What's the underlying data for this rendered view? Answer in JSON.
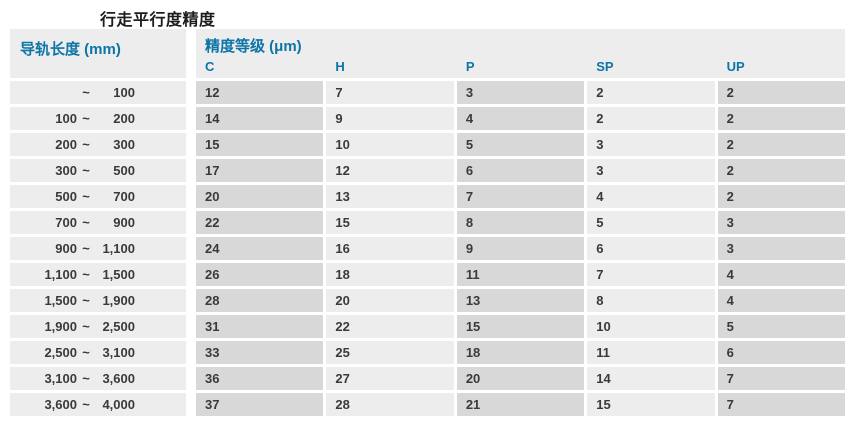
{
  "title": "行走平行度精度",
  "colors": {
    "accent_blue": "#0d74a8",
    "cell_dark": "#d8d8d8",
    "cell_light": "#ededed",
    "text_dark": "#3a3a3a"
  },
  "table": {
    "col1_header": "导轨长度 (mm)",
    "group_header": "精度等级 (μm)",
    "tilde_separator": "~",
    "grades": [
      "C",
      "H",
      "P",
      "SP",
      "UP"
    ],
    "rows": [
      {
        "lo": "",
        "hi": "100",
        "values": [
          12,
          7,
          3,
          2,
          2
        ]
      },
      {
        "lo": "100",
        "hi": "200",
        "values": [
          14,
          9,
          4,
          2,
          2
        ]
      },
      {
        "lo": "200",
        "hi": "300",
        "values": [
          15,
          10,
          5,
          3,
          2
        ]
      },
      {
        "lo": "300",
        "hi": "500",
        "values": [
          17,
          12,
          6,
          3,
          2
        ]
      },
      {
        "lo": "500",
        "hi": "700",
        "values": [
          20,
          13,
          7,
          4,
          2
        ]
      },
      {
        "lo": "700",
        "hi": "900",
        "values": [
          22,
          15,
          8,
          5,
          3
        ]
      },
      {
        "lo": "900",
        "hi": "1,100",
        "values": [
          24,
          16,
          9,
          6,
          3
        ]
      },
      {
        "lo": "1,100",
        "hi": "1,500",
        "values": [
          26,
          18,
          11,
          7,
          4
        ]
      },
      {
        "lo": "1,500",
        "hi": "1,900",
        "values": [
          28,
          20,
          13,
          8,
          4
        ]
      },
      {
        "lo": "1,900",
        "hi": "2,500",
        "values": [
          31,
          22,
          15,
          10,
          5
        ]
      },
      {
        "lo": "2,500",
        "hi": "3,100",
        "values": [
          33,
          25,
          18,
          11,
          6
        ]
      },
      {
        "lo": "3,100",
        "hi": "3,600",
        "values": [
          36,
          27,
          20,
          14,
          7
        ]
      },
      {
        "lo": "3,600",
        "hi": "4,000",
        "values": [
          37,
          28,
          21,
          15,
          7
        ]
      }
    ]
  }
}
